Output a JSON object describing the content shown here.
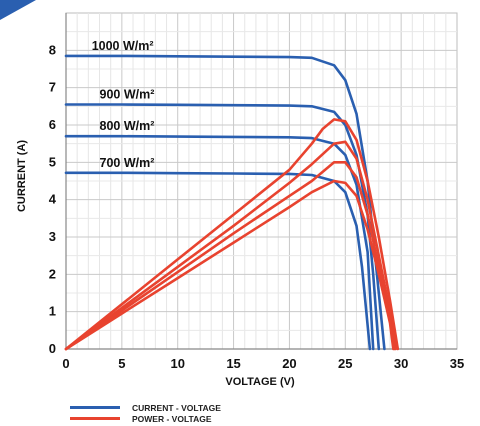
{
  "chart_data": {
    "type": "line",
    "xlabel": "VOLTAGE (V)",
    "ylabel": "CURRENT (A)",
    "xlim": [
      0,
      35
    ],
    "ylim": [
      0,
      9
    ],
    "x_ticks": [
      "0",
      "5",
      "10",
      "15",
      "20",
      "25",
      "30",
      "35"
    ],
    "y_ticks": [
      "0",
      "1",
      "2",
      "3",
      "4",
      "5",
      "6",
      "7",
      "8"
    ],
    "grid": true,
    "legend_position": "bottom-left",
    "legend": [
      {
        "label": "CURRENT - VOLTAGE",
        "color": "#2a5fb0"
      },
      {
        "label": "POWER - VOLTAGE",
        "color": "#e8432f"
      }
    ],
    "annotations": [
      "1000 W/m²",
      "900 W/m²",
      "800 W/m²",
      "700 W/m²"
    ],
    "series": [
      {
        "group": "CURRENT - VOLTAGE",
        "irradiance": "1000 W/m²",
        "x": [
          0,
          5,
          10,
          15,
          20,
          22,
          24,
          25,
          26,
          27,
          27.5,
          28,
          28.5
        ],
        "y": [
          7.85,
          7.85,
          7.84,
          7.83,
          7.82,
          7.8,
          7.6,
          7.2,
          6.3,
          4.5,
          3.0,
          1.5,
          0
        ]
      },
      {
        "group": "CURRENT - VOLTAGE",
        "irradiance": "900 W/m²",
        "x": [
          0,
          5,
          10,
          15,
          20,
          22,
          24,
          25,
          26,
          27,
          27.5,
          28
        ],
        "y": [
          6.55,
          6.55,
          6.54,
          6.53,
          6.52,
          6.5,
          6.35,
          6.0,
          5.2,
          3.6,
          2.0,
          0
        ]
      },
      {
        "group": "CURRENT - VOLTAGE",
        "irradiance": "800 W/m²",
        "x": [
          0,
          5,
          10,
          15,
          20,
          22,
          24,
          25,
          26,
          27,
          27.5
        ],
        "y": [
          5.7,
          5.7,
          5.69,
          5.68,
          5.67,
          5.65,
          5.5,
          5.2,
          4.4,
          2.6,
          0
        ]
      },
      {
        "group": "CURRENT - VOLTAGE",
        "irradiance": "700 W/m²",
        "x": [
          0,
          5,
          10,
          15,
          20,
          22,
          24,
          25,
          26,
          26.5,
          27.2
        ],
        "y": [
          4.72,
          4.72,
          4.71,
          4.7,
          4.69,
          4.66,
          4.5,
          4.2,
          3.3,
          2.2,
          0
        ]
      },
      {
        "group": "POWER - VOLTAGE",
        "irradiance": "1000 W/m²",
        "x": [
          0,
          5,
          10,
          15,
          20,
          22,
          23,
          24,
          25,
          26,
          27,
          28,
          29,
          29.7
        ],
        "y": [
          0,
          1.2,
          2.4,
          3.6,
          4.8,
          5.5,
          5.9,
          6.15,
          6.1,
          5.6,
          4.5,
          3.0,
          1.3,
          0
        ]
      },
      {
        "group": "POWER - VOLTAGE",
        "irradiance": "900 W/m²",
        "x": [
          0,
          5,
          10,
          15,
          20,
          22,
          24,
          25,
          26,
          27,
          28,
          29,
          29.5
        ],
        "y": [
          0,
          1.1,
          2.2,
          3.3,
          4.45,
          4.95,
          5.5,
          5.55,
          5.1,
          4.0,
          2.5,
          1.0,
          0
        ]
      },
      {
        "group": "POWER - VOLTAGE",
        "irradiance": "800 W/m²",
        "x": [
          0,
          5,
          10,
          15,
          20,
          22,
          24,
          25,
          26,
          27,
          28,
          29,
          29.4
        ],
        "y": [
          0,
          1.03,
          2.06,
          3.1,
          4.1,
          4.5,
          5.0,
          5.0,
          4.6,
          3.6,
          2.2,
          0.8,
          0
        ]
      },
      {
        "group": "POWER - VOLTAGE",
        "irradiance": "700 W/m²",
        "x": [
          0,
          5,
          10,
          15,
          20,
          22,
          24,
          25,
          26,
          27,
          28,
          29,
          29.3
        ],
        "y": [
          0,
          0.95,
          1.9,
          2.85,
          3.8,
          4.2,
          4.5,
          4.45,
          4.1,
          3.2,
          2.0,
          0.7,
          0
        ]
      }
    ]
  }
}
